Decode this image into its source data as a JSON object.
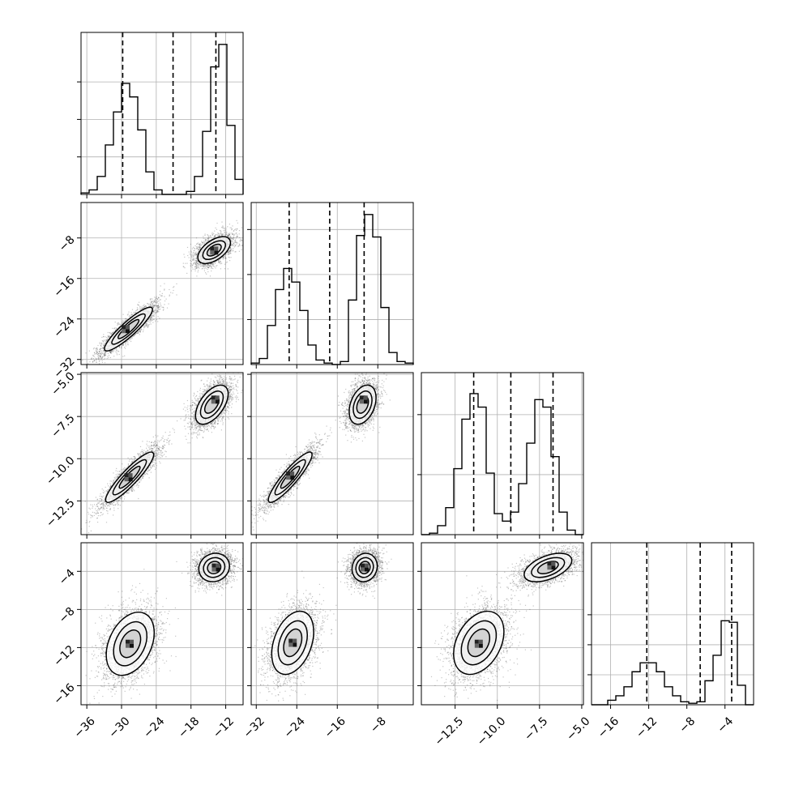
{
  "chart_data": {
    "type": "corner",
    "title": "",
    "parameters": [
      {
        "range": [
          -37,
          -9
        ],
        "ticks": [
          -36,
          -30,
          -24,
          -18,
          -12
        ],
        "tick_labels": [
          "−36",
          "−30",
          "−24",
          "−18",
          "−12"
        ],
        "quantiles": [
          -29.8,
          -21.1,
          -13.7
        ]
      },
      {
        "range": [
          -33,
          -1
        ],
        "ticks": [
          -32,
          -24,
          -16,
          -8
        ],
        "tick_labels": [
          "−32",
          "−24",
          "−16",
          "−8"
        ],
        "quantiles": [
          -25.5,
          -17.5,
          -10.7
        ]
      },
      {
        "range": [
          -14.5,
          -4.9
        ],
        "ticks": [
          -12.5,
          -10.0,
          -7.5,
          -5.0
        ],
        "tick_labels": [
          "−12.5",
          "−10.0",
          "−7.5",
          "−5.0"
        ],
        "quantiles": [
          -11.4,
          -9.2,
          -6.7
        ]
      },
      {
        "range": [
          -18,
          -1
        ],
        "ticks": [
          -16,
          -12,
          -8,
          -4
        ],
        "tick_labels": [
          "−16",
          "−12",
          "−8",
          "−4"
        ],
        "quantiles": [
          -12.2,
          -6.6,
          -3.3
        ]
      }
    ],
    "histograms": [
      {
        "param": 0,
        "edges_start": -37,
        "bin_width": 1.4,
        "counts": [
          0.01,
          0.03,
          0.12,
          0.33,
          0.55,
          0.74,
          0.65,
          0.43,
          0.15,
          0.03,
          0.0,
          0.0,
          0.0,
          0.02,
          0.12,
          0.42,
          0.85,
          1.0,
          0.46,
          0.1,
          0.0
        ],
        "yticks": [
          0.25,
          0.5,
          0.75
        ]
      },
      {
        "param": 1,
        "edges_start": -33,
        "bin_width": 1.6,
        "counts": [
          0.01,
          0.04,
          0.26,
          0.5,
          0.64,
          0.55,
          0.36,
          0.13,
          0.03,
          0.01,
          0.0,
          0.02,
          0.43,
          0.86,
          1.0,
          0.85,
          0.38,
          0.08,
          0.02,
          0.01,
          0.0
        ],
        "yticks": [
          0.3,
          0.6,
          0.9
        ]
      },
      {
        "param": 2,
        "edges_start": -14.5,
        "bin_width": 0.48,
        "counts": [
          0.0,
          0.01,
          0.06,
          0.18,
          0.44,
          0.77,
          0.94,
          0.85,
          0.41,
          0.14,
          0.09,
          0.15,
          0.34,
          0.61,
          0.9,
          0.85,
          0.52,
          0.15,
          0.03,
          0.0,
          0.0
        ],
        "yticks": [
          0.4,
          0.8
        ]
      },
      {
        "param": 3,
        "edges_start": -18,
        "bin_width": 0.85,
        "counts": [
          0.0,
          0.0,
          0.03,
          0.06,
          0.12,
          0.22,
          0.28,
          0.28,
          0.22,
          0.12,
          0.06,
          0.02,
          0.01,
          0.02,
          0.16,
          0.33,
          0.56,
          0.55,
          0.13,
          0.0
        ],
        "yticks": [
          0.2,
          0.4,
          0.6
        ]
      }
    ],
    "scatter_panels": [
      {
        "x_param": 0,
        "y_param": 1,
        "clusters": [
          {
            "center": [
              -28.8,
              -26.0
            ],
            "sx": 2.5,
            "sy": 2.6,
            "corr": 0.9,
            "weight": 0.5,
            "peak": [
              -29.3,
              -26.0
            ]
          },
          {
            "center": [
              -14.0,
              -10.4
            ],
            "sx": 1.7,
            "sy": 1.6,
            "corr": 0.55,
            "weight": 0.5,
            "peak": [
              -14.0,
              -10.5
            ]
          }
        ]
      },
      {
        "x_param": 0,
        "y_param": 2,
        "clusters": [
          {
            "center": [
              -28.6,
              -11.1
            ],
            "sx": 2.5,
            "sy": 0.9,
            "corr": 0.9,
            "weight": 0.5,
            "peak": [
              -28.8,
              -11.1
            ]
          },
          {
            "center": [
              -14.4,
              -6.8
            ],
            "sx": 1.7,
            "sy": 0.7,
            "corr": 0.55,
            "weight": 0.5,
            "peak": [
              -13.8,
              -6.5
            ]
          }
        ]
      },
      {
        "x_param": 1,
        "y_param": 2,
        "clusters": [
          {
            "center": [
              -25.3,
              -11.1
            ],
            "sx": 2.6,
            "sy": 0.9,
            "corr": 0.9,
            "weight": 0.5,
            "peak": [
              -25.3,
              -11.0
            ]
          },
          {
            "center": [
              -11.0,
              -6.8
            ],
            "sx": 1.6,
            "sy": 0.7,
            "corr": 0.35,
            "weight": 0.5,
            "peak": [
              -10.8,
              -6.5
            ]
          }
        ]
      },
      {
        "x_param": 0,
        "y_param": 3,
        "clusters": [
          {
            "center": [
              -28.5,
              -11.6
            ],
            "sx": 2.5,
            "sy": 2.0,
            "corr": 0.35,
            "weight": 0.5,
            "peak": [
              -28.6,
              -11.6
            ]
          },
          {
            "center": [
              -14.0,
              -3.6
            ],
            "sx": 1.6,
            "sy": 0.9,
            "corr": 0.1,
            "weight": 0.5,
            "peak": [
              -13.7,
              -3.6
            ]
          }
        ]
      },
      {
        "x_param": 1,
        "y_param": 3,
        "clusters": [
          {
            "center": [
              -24.8,
              -11.5
            ],
            "sx": 2.5,
            "sy": 2.0,
            "corr": 0.35,
            "weight": 0.5,
            "peak": [
              -24.8,
              -11.5
            ]
          },
          {
            "center": [
              -10.6,
              -3.6
            ],
            "sx": 1.5,
            "sy": 0.9,
            "corr": 0.1,
            "weight": 0.5,
            "peak": [
              -10.6,
              -3.6
            ]
          }
        ]
      },
      {
        "x_param": 2,
        "y_param": 3,
        "clusters": [
          {
            "center": [
              -11.1,
              -11.5
            ],
            "sx": 0.9,
            "sy": 2.0,
            "corr": 0.35,
            "weight": 0.5,
            "peak": [
              -11.1,
              -11.6
            ]
          },
          {
            "center": [
              -7.0,
              -3.6
            ],
            "sx": 0.85,
            "sy": 0.9,
            "corr": 0.5,
            "weight": 0.5,
            "peak": [
              -6.8,
              -3.4
            ]
          }
        ]
      }
    ],
    "contour_levels": [
      1.0,
      1.6,
      2.3
    ],
    "points_per_cluster": 2600,
    "grid": true,
    "legend": "none",
    "colors": {
      "line": "#000000",
      "grid": "#b0b0b0",
      "points": "#555555",
      "frame": "#000000"
    }
  }
}
